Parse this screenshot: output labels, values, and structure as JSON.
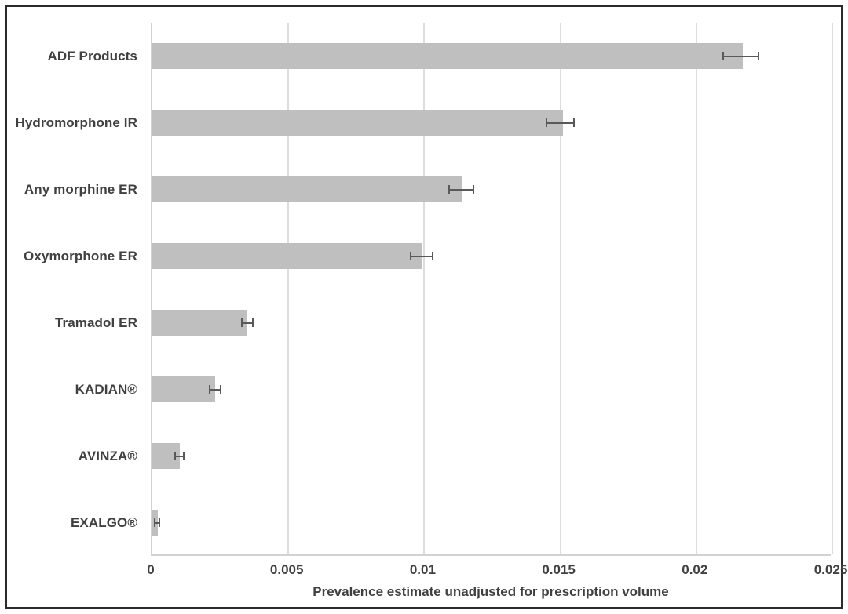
{
  "chart_data": {
    "type": "bar",
    "orientation": "horizontal",
    "title": "",
    "xlabel": "Prevalence estimate unadjusted for prescription volume",
    "ylabel": "",
    "xlim": [
      0,
      0.025
    ],
    "xticks": [
      0,
      0.005,
      0.01,
      0.015,
      0.02,
      0.025
    ],
    "xtick_labels": [
      "0",
      "0.005",
      "0.01",
      "0.015",
      "0.02",
      "0.025"
    ],
    "grid": true,
    "legend": false,
    "categories": [
      "ADF Products",
      "Hydromorphone IR",
      "Any morphine ER",
      "Oxymorphone ER",
      "Tramadol ER",
      "KADIAN®",
      "AVINZA®",
      "EXALGO®"
    ],
    "values": [
      0.0217,
      0.0151,
      0.0114,
      0.0099,
      0.0035,
      0.0023,
      0.001,
      0.0002
    ],
    "error_low": [
      0.021,
      0.0145,
      0.0109,
      0.0095,
      0.0033,
      0.0021,
      0.00085,
      0.0001
    ],
    "error_high": [
      0.0223,
      0.0155,
      0.0118,
      0.0103,
      0.0037,
      0.0025,
      0.00115,
      0.00025
    ],
    "colors": {
      "bar": "#bfbfbf",
      "error_bar": "#595959",
      "gridline": "#dcdcdc",
      "axis_line": "#d2d2d2",
      "text": "#404040",
      "frame_border": "#2b2b2b",
      "background": "#ffffff"
    }
  }
}
